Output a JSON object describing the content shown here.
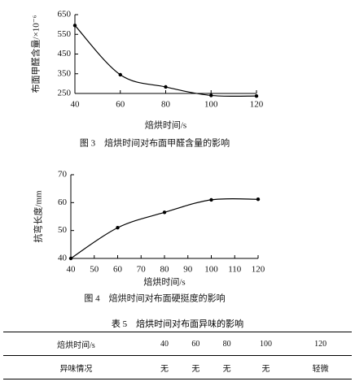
{
  "chart_data": [
    {
      "type": "line",
      "caption": "图 3　焙烘时间对布面甲醛含量的影响",
      "x_label": "焙烘时间/s",
      "y_label": "布面甲醛含量/×10⁻⁶",
      "x": [
        40,
        60,
        80,
        100,
        120
      ],
      "values": [
        595,
        345,
        283,
        240,
        237
      ],
      "color": "#000000",
      "xlim": [
        40,
        120
      ],
      "xticks": [
        40,
        60,
        80,
        100,
        120
      ],
      "ylim": [
        250,
        650
      ],
      "yticks": [
        250,
        350,
        450,
        550,
        650
      ]
    },
    {
      "type": "line",
      "caption": "图 4　焙烘时间对布面硬挺度的影响",
      "x_label": "焙烘时间/s",
      "y_label": "抗弯长度/mm",
      "x": [
        40,
        60,
        80,
        100,
        120
      ],
      "values": [
        40,
        51,
        56.5,
        61,
        61.2
      ],
      "color": "#000000",
      "xlim": [
        40,
        120
      ],
      "xticks": [
        40,
        50,
        60,
        70,
        80,
        90,
        100,
        110,
        120
      ],
      "ylim": [
        40,
        70
      ],
      "yticks": [
        40,
        50,
        60,
        70
      ]
    }
  ],
  "table": {
    "title": "表 5　焙烘时间对布面异味的影响",
    "header": [
      "焙烘时间/s",
      "40",
      "60",
      "80",
      "100",
      "120"
    ],
    "rows": [
      [
        "异味情况",
        "无",
        "无",
        "无",
        "无",
        "轻微"
      ]
    ]
  }
}
